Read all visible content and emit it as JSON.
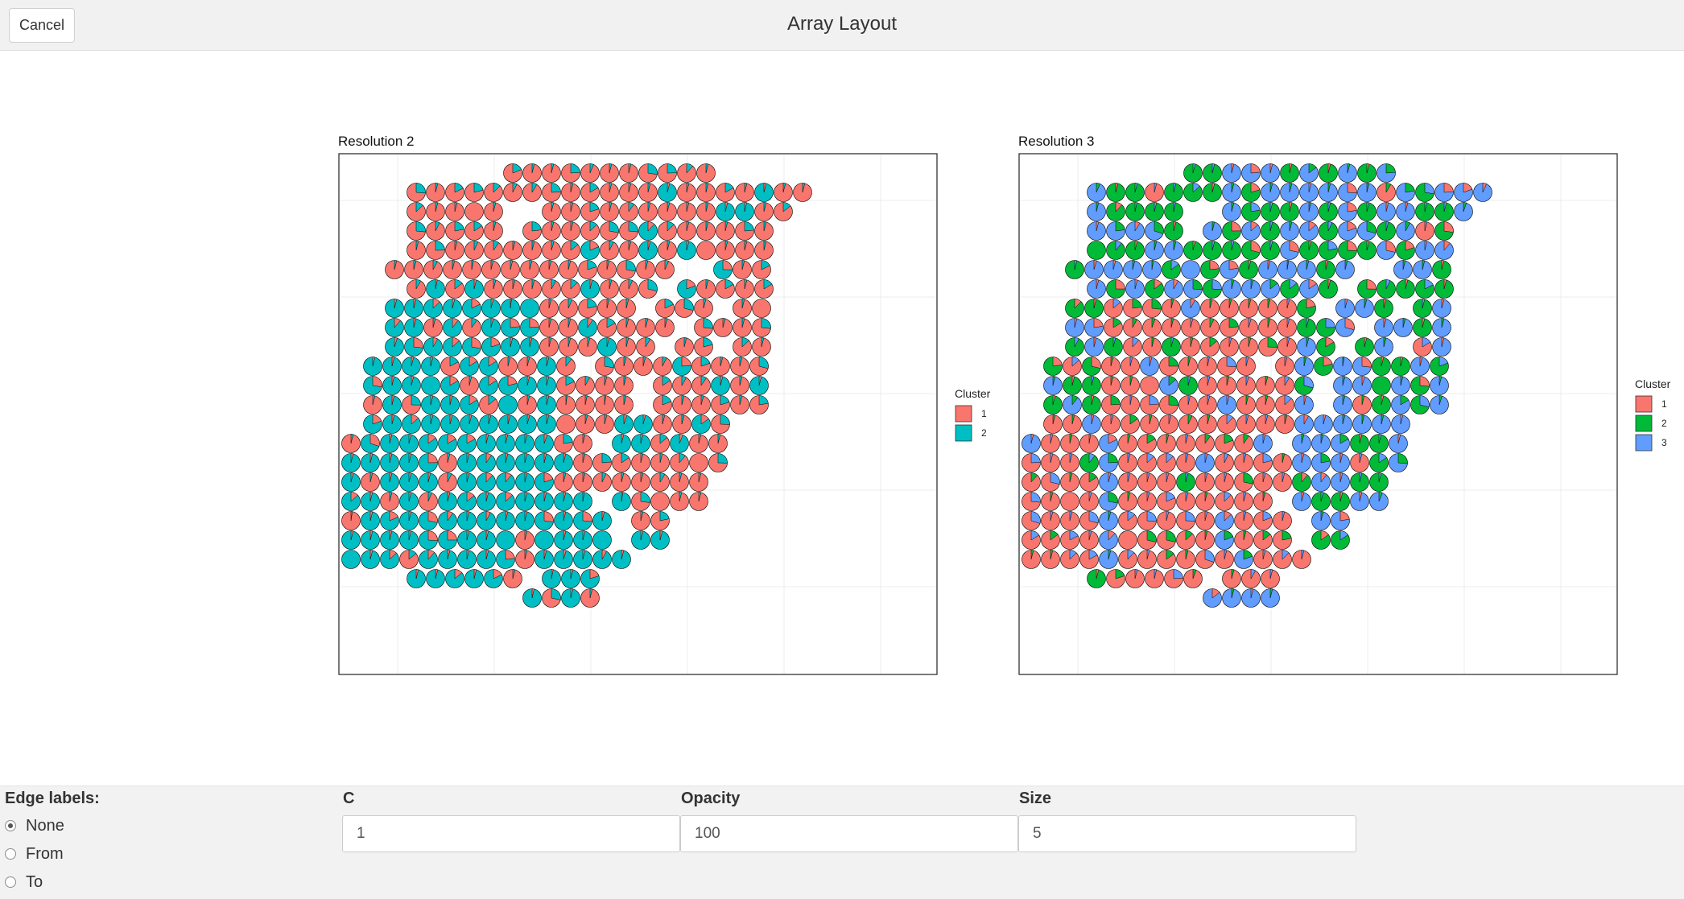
{
  "header": {
    "cancel_label": "Cancel",
    "title": "Array Layout"
  },
  "colors": {
    "cluster_1": "#F8766D",
    "cluster_2_of_2": "#00BFC4",
    "cluster_2_of_3": "#00BA38",
    "cluster_3_of_3": "#619CFF"
  },
  "chart_data": [
    {
      "type": "scatter",
      "marker": "pie",
      "title": "Resolution 2",
      "legend": {
        "title": "Cluster",
        "placement": "right",
        "entries": [
          "1",
          "2"
        ]
      },
      "grid": true,
      "series": [
        {
          "name": "1",
          "color": "#F8766D"
        },
        {
          "name": "2",
          "color": "#00BFC4"
        }
      ]
    },
    {
      "type": "scatter",
      "marker": "pie",
      "title": "Resolution 3",
      "legend": {
        "title": "Cluster",
        "placement": "right",
        "entries": [
          "1",
          "2",
          "3"
        ]
      },
      "grid": true,
      "series": [
        {
          "name": "1",
          "color": "#F8766D"
        },
        {
          "name": "2",
          "color": "#00BA38"
        },
        {
          "name": "3",
          "color": "#619CFF"
        }
      ]
    }
  ],
  "controls": {
    "edge_labels": {
      "title": "Edge labels:",
      "options": [
        "None",
        "From",
        "To"
      ],
      "selected": "None"
    },
    "c": {
      "label": "C",
      "value": "1"
    },
    "opacity": {
      "label": "Opacity",
      "value": "100"
    },
    "size": {
      "label": "Size",
      "value": "5"
    }
  }
}
